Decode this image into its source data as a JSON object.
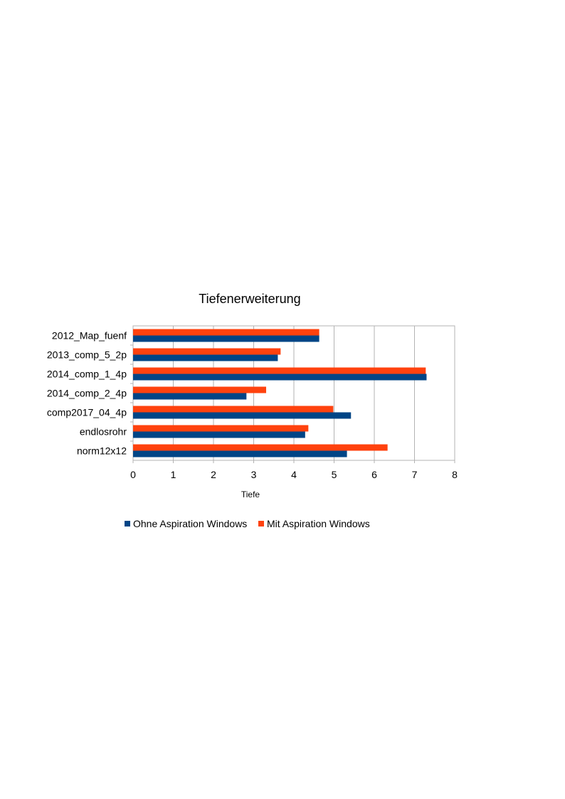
{
  "chart_data": {
    "type": "bar",
    "orientation": "horizontal",
    "title": "Tiefenerweiterung",
    "xlabel": "Tiefe",
    "ylabel": "",
    "xlim": [
      0,
      8
    ],
    "xticks": [
      "0",
      "1",
      "2",
      "3",
      "4",
      "5",
      "6",
      "7",
      "8"
    ],
    "grid": true,
    "legend_position": "bottom",
    "categories": [
      "2012_Map_fuenf",
      "2013_comp_5_2p",
      "2014_comp_1_4p",
      "2014_comp_2_4p",
      "comp2017_04_4p",
      "endlosrohr",
      "norm12x12"
    ],
    "series": [
      {
        "name": "Ohne Aspiration Windows",
        "color": "#004586",
        "values": [
          4.63,
          3.6,
          7.3,
          2.82,
          5.42,
          4.28,
          5.32
        ]
      },
      {
        "name": "Mit Aspiration Windows",
        "color": "#ff420e",
        "values": [
          4.63,
          3.67,
          7.28,
          3.31,
          4.98,
          4.36,
          6.33
        ]
      }
    ]
  }
}
